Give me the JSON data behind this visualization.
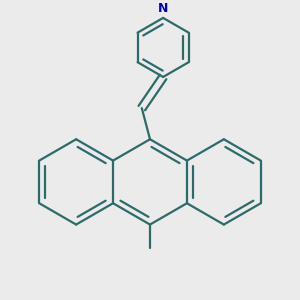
{
  "background_color": "#ebebeb",
  "bond_color": "#2d6b6b",
  "N_color": "#0000cc",
  "line_width": 1.6,
  "fig_width": 3.0,
  "fig_height": 3.0,
  "dpi": 100,
  "anthracene_scale": 0.13,
  "pyr_scale": 0.09
}
